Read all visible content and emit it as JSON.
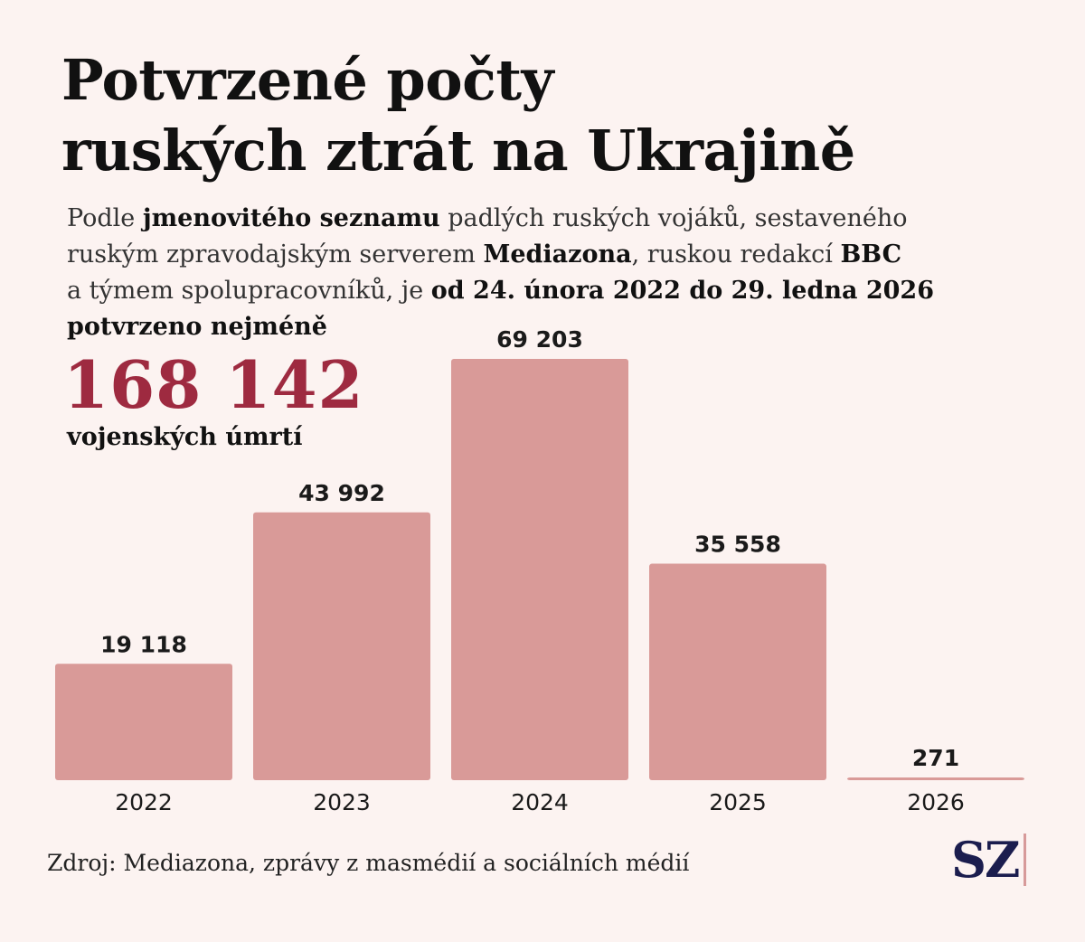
{
  "title_line1": "Potvrzené počty",
  "title_line2": "ruských ztrát na Ukrajině",
  "intro": {
    "l1a": "Podle ",
    "l1b": "jmenovitého seznamu",
    "l1c": " padlých ruských vojáků, sestaveného",
    "l2a": "ruským zpravodajským serverem ",
    "l2b": "Mediazona",
    "l2c": ", ruskou redakcí ",
    "l2d": "BBC",
    "l3a": "a týmem spolupracovníků, je ",
    "l3b": "od 24. února 2022 do 29. ledna 2026",
    "l4": "potvrzeno nejméně"
  },
  "total": "168 142",
  "total_sub": "vojenských úmrtí",
  "source": "Zdroj: Mediazona, zprávy z masmédií a sociálních médií",
  "logo": "SZ",
  "colors": {
    "bar": "#d99a98",
    "accent": "#9e2a40",
    "logo": "#1b1d4e"
  },
  "chart_data": {
    "type": "bar",
    "title": "Potvrzené počty ruských ztrát na Ukrajině",
    "xlabel": "",
    "ylabel": "",
    "categories": [
      "2022",
      "2023",
      "2024",
      "2025",
      "2026"
    ],
    "values": [
      19118,
      43992,
      69203,
      35558,
      271
    ],
    "value_labels": [
      "19 118",
      "43 992",
      "69 203",
      "35 558",
      "271"
    ],
    "ylim": [
      0,
      69203
    ],
    "grid": false,
    "legend": "none"
  }
}
